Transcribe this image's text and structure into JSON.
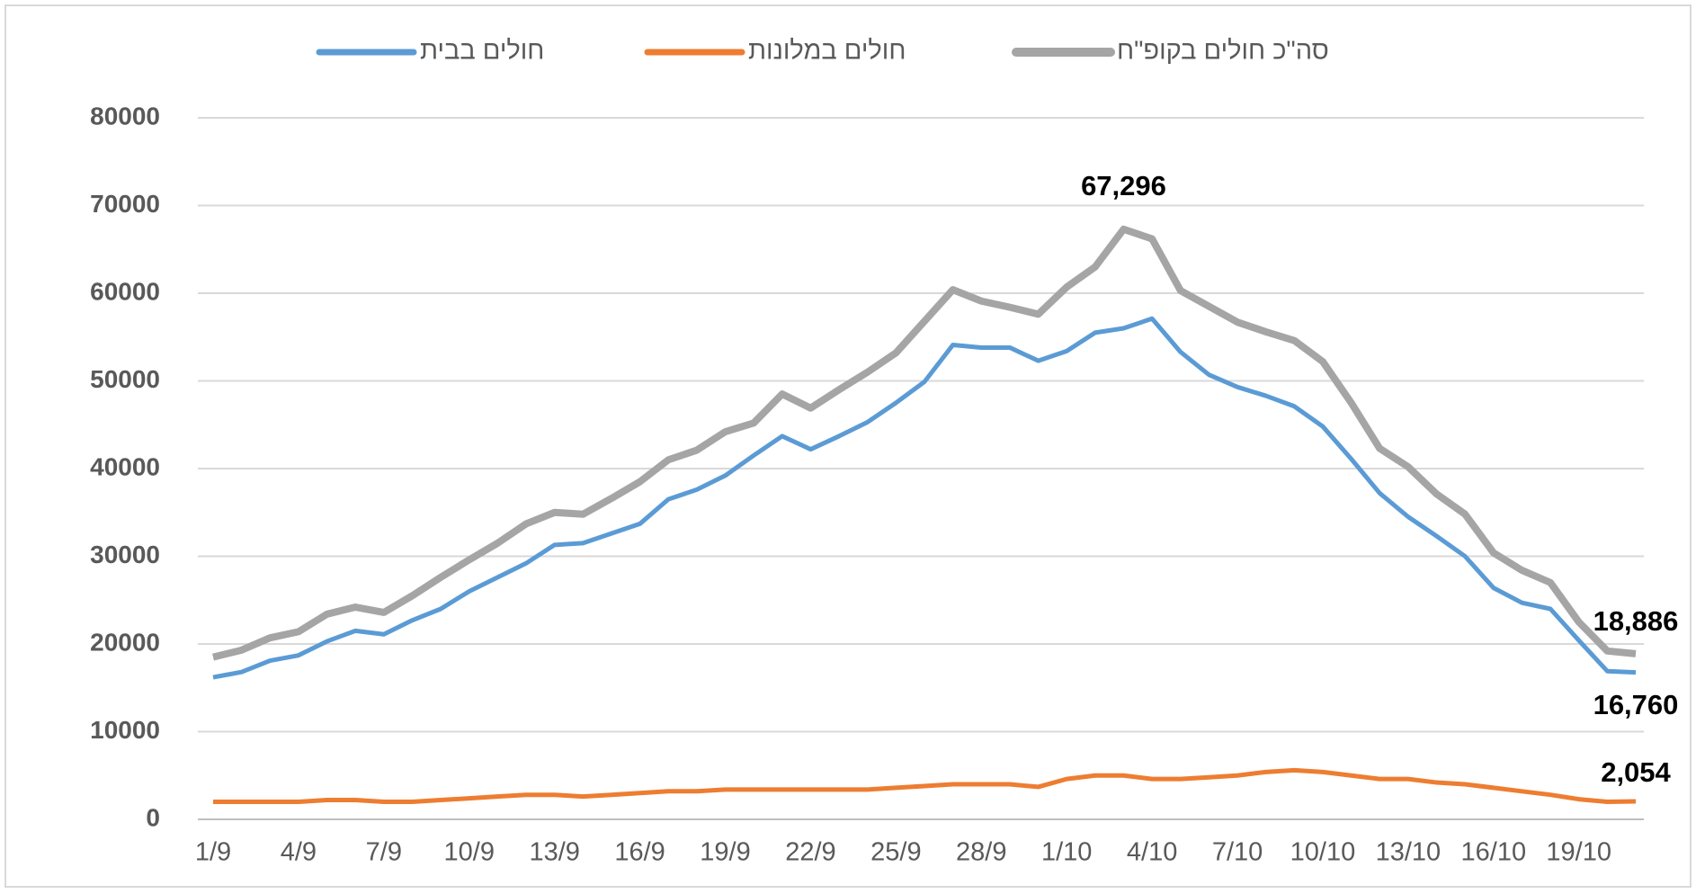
{
  "chart_data": {
    "type": "line",
    "categories": [
      "1/9",
      null,
      null,
      "4/9",
      null,
      null,
      "7/9",
      null,
      null,
      "10/9",
      null,
      null,
      "13/9",
      null,
      null,
      "16/9",
      null,
      null,
      "19/9",
      null,
      null,
      "22/9",
      null,
      null,
      "25/9",
      null,
      null,
      "28/9",
      null,
      null,
      "1/10",
      null,
      null,
      "4/10",
      null,
      null,
      "7/10",
      null,
      null,
      "10/10",
      null,
      null,
      "13/10",
      null,
      null,
      "16/10",
      null,
      null,
      "19/10",
      null,
      null
    ],
    "series": [
      {
        "name": "חולים בבית",
        "color": "#5b9bd5",
        "values": [
          16200,
          16800,
          18100,
          18700,
          20300,
          21500,
          21100,
          22700,
          24000,
          26000,
          27600,
          29200,
          31300,
          31500,
          32600,
          33700,
          36500,
          37600,
          39200,
          41500,
          43700,
          42200,
          43700,
          45300,
          47500,
          49900,
          54100,
          53800,
          53800,
          52300,
          53400,
          55500,
          56000,
          57100,
          53300,
          50700,
          49300,
          48300,
          47100,
          44800,
          41100,
          37200,
          34500,
          32300,
          30000,
          26400,
          24700,
          24000,
          20400,
          16900,
          16760
        ],
        "value_labels": [
          null,
          null,
          null,
          null,
          null,
          null,
          null,
          null,
          null,
          null,
          null,
          null,
          null,
          null,
          null,
          null,
          null,
          null,
          null,
          null,
          null,
          null,
          null,
          null,
          null,
          null,
          null,
          null,
          null,
          null,
          null,
          null,
          null,
          null,
          null,
          null,
          null,
          null,
          null,
          null,
          null,
          null,
          null,
          null,
          null,
          null,
          null,
          null,
          null,
          null,
          "16,760"
        ]
      },
      {
        "name": "חולים במלונות",
        "color": "#ed7d31",
        "values": [
          2000,
          2000,
          2000,
          2000,
          2200,
          2200,
          2000,
          2000,
          2200,
          2400,
          2600,
          2800,
          2800,
          2600,
          2800,
          3000,
          3200,
          3200,
          3400,
          3400,
          3400,
          3400,
          3400,
          3400,
          3600,
          3800,
          4000,
          4000,
          4000,
          3700,
          4600,
          5000,
          5000,
          4600,
          4600,
          4800,
          5000,
          5400,
          5600,
          5400,
          5000,
          4600,
          4600,
          4200,
          4000,
          3600,
          3200,
          2800,
          2300,
          2000,
          2054
        ],
        "value_labels": [
          null,
          null,
          null,
          null,
          null,
          null,
          null,
          null,
          null,
          null,
          null,
          null,
          null,
          null,
          null,
          null,
          null,
          null,
          null,
          null,
          null,
          null,
          null,
          null,
          null,
          null,
          null,
          null,
          null,
          null,
          null,
          null,
          null,
          null,
          null,
          null,
          null,
          null,
          null,
          null,
          null,
          null,
          null,
          null,
          null,
          null,
          null,
          null,
          null,
          null,
          "2,054"
        ]
      },
      {
        "name": "סה\"כ חולים בקופ\"ח",
        "color": "#a5a5a5",
        "values": [
          18500,
          19300,
          20700,
          21400,
          23400,
          24200,
          23600,
          25500,
          27600,
          29600,
          31500,
          33700,
          35000,
          34800,
          36600,
          38500,
          41000,
          42100,
          44200,
          45200,
          48500,
          46900,
          49000,
          51000,
          53200,
          56800,
          60400,
          59100,
          58400,
          57600,
          60700,
          63000,
          67296,
          66200,
          60300,
          58500,
          56700,
          55600,
          54600,
          52200,
          47500,
          42300,
          40200,
          37100,
          34800,
          30400,
          28400,
          27000,
          22500,
          19200,
          18886
        ],
        "value_labels": [
          null,
          null,
          null,
          null,
          null,
          null,
          null,
          null,
          null,
          null,
          null,
          null,
          null,
          null,
          null,
          null,
          null,
          null,
          null,
          null,
          null,
          null,
          null,
          null,
          null,
          null,
          null,
          null,
          null,
          null,
          null,
          null,
          "67,296",
          null,
          null,
          null,
          null,
          null,
          null,
          null,
          null,
          null,
          null,
          null,
          null,
          null,
          null,
          null,
          null,
          null,
          "18,886"
        ]
      }
    ],
    "ylim": [
      0,
      80000
    ],
    "yticks": [
      0,
      10000,
      20000,
      30000,
      40000,
      50000,
      60000,
      70000,
      80000
    ],
    "grid": true,
    "legend": "top"
  }
}
